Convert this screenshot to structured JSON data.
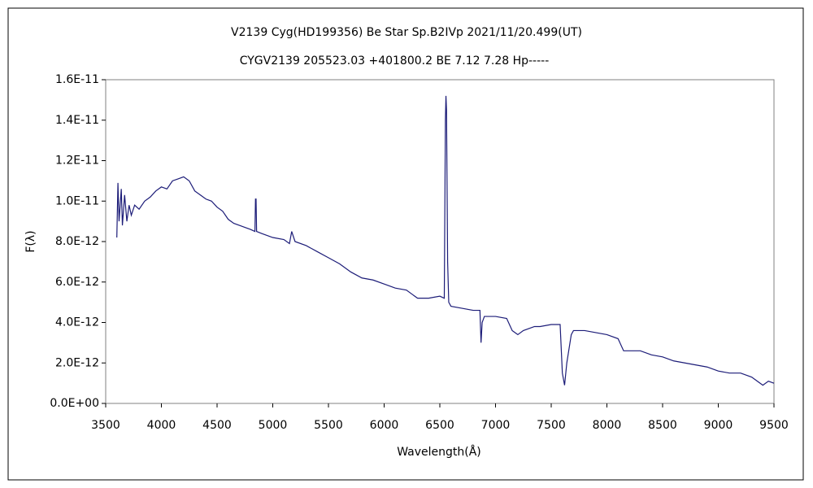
{
  "chart_data": {
    "type": "line",
    "title": "V2139 Cyg(HD199356)    Be Star    Sp.B2IVp    2021/11/20.499(UT)",
    "subtitle": "CYGV2139 205523.03 +401800.2 BE 7.12 7.28 Hp-----",
    "x_label": "Wavelength(Å)",
    "y_label": "F(λ)",
    "x": [
      3600,
      3610,
      3620,
      3640,
      3650,
      3670,
      3690,
      3710,
      3730,
      3760,
      3800,
      3850,
      3900,
      3950,
      4000,
      4050,
      4100,
      4150,
      4200,
      4250,
      4300,
      4350,
      4400,
      4450,
      4500,
      4550,
      4600,
      4650,
      4700,
      4800,
      4840,
      4845,
      4850,
      4855,
      4900,
      5000,
      5100,
      5150,
      5170,
      5200,
      5300,
      5400,
      5500,
      5600,
      5700,
      5800,
      5900,
      6000,
      6100,
      6200,
      6250,
      6300,
      6400,
      6500,
      6540,
      6550,
      6555,
      6560,
      6570,
      6580,
      6600,
      6700,
      6800,
      6860,
      6870,
      6880,
      6900,
      7000,
      7100,
      7150,
      7200,
      7250,
      7300,
      7350,
      7400,
      7500,
      7580,
      7600,
      7620,
      7640,
      7680,
      7700,
      7800,
      7900,
      8000,
      8100,
      8150,
      8200,
      8300,
      8400,
      8500,
      8600,
      8700,
      8800,
      8900,
      9000,
      9100,
      9200,
      9300,
      9350,
      9400,
      9450,
      9500
    ],
    "series": [
      {
        "color": "#1c1c78",
        "values": [
          8.2e-12,
          1.09e-11,
          9e-12,
          1.06e-11,
          8.8e-12,
          1.03e-11,
          9e-12,
          9.8e-12,
          9.3e-12,
          9.8e-12,
          9.6e-12,
          1e-11,
          1.02e-11,
          1.05e-11,
          1.07e-11,
          1.06e-11,
          1.1e-11,
          1.11e-11,
          1.12e-11,
          1.1e-11,
          1.05e-11,
          1.03e-11,
          1.01e-11,
          1e-11,
          9.7e-12,
          9.5e-12,
          9.1e-12,
          8.9e-12,
          8.8e-12,
          8.6e-12,
          8.5e-12,
          1.01e-11,
          1.01e-11,
          8.5e-12,
          8.4e-12,
          8.2e-12,
          8.1e-12,
          7.9e-12,
          8.5e-12,
          8e-12,
          7.8e-12,
          7.5e-12,
          7.2e-12,
          6.9e-12,
          6.5e-12,
          6.2e-12,
          6.1e-12,
          5.9e-12,
          5.7e-12,
          5.6e-12,
          5.4e-12,
          5.2e-12,
          5.2e-12,
          5.3e-12,
          5.2e-12,
          1.4e-11,
          1.52e-11,
          1.45e-11,
          7e-12,
          5e-12,
          4.8e-12,
          4.7e-12,
          4.6e-12,
          4.6e-12,
          3e-12,
          4e-12,
          4.3e-12,
          4.3e-12,
          4.2e-12,
          3.6e-12,
          3.4e-12,
          3.6e-12,
          3.7e-12,
          3.8e-12,
          3.8e-12,
          3.9e-12,
          3.9e-12,
          1.5e-12,
          9e-13,
          2e-12,
          3.4e-12,
          3.6e-12,
          3.6e-12,
          3.5e-12,
          3.4e-12,
          3.2e-12,
          2.6e-12,
          2.6e-12,
          2.6e-12,
          2.4e-12,
          2.3e-12,
          2.1e-12,
          2e-12,
          1.9e-12,
          1.8e-12,
          1.6e-12,
          1.5e-12,
          1.5e-12,
          1.3e-12,
          1.1e-12,
          9e-13,
          1.1e-12,
          1e-12
        ]
      }
    ],
    "xlim": [
      3500,
      9500
    ],
    "xticks": [
      3500,
      4000,
      4500,
      5000,
      5500,
      6000,
      6500,
      7000,
      7500,
      8000,
      8500,
      9000,
      9500
    ],
    "ylim": [
      0,
      1.6e-11
    ],
    "yticks": [
      {
        "value": 0,
        "label": "0.0E+00"
      },
      {
        "value": 2e-12,
        "label": "2.0E-12"
      },
      {
        "value": 4e-12,
        "label": "4.0E-12"
      },
      {
        "value": 6e-12,
        "label": "6.0E-12"
      },
      {
        "value": 8e-12,
        "label": "8.0E-12"
      },
      {
        "value": 1e-11,
        "label": "1.0E-11"
      },
      {
        "value": 1.2e-11,
        "label": "1.2E-11"
      },
      {
        "value": 1.4e-11,
        "label": "1.4E-11"
      },
      {
        "value": 1.6e-11,
        "label": "1.6E-11"
      }
    ],
    "grid": false
  }
}
